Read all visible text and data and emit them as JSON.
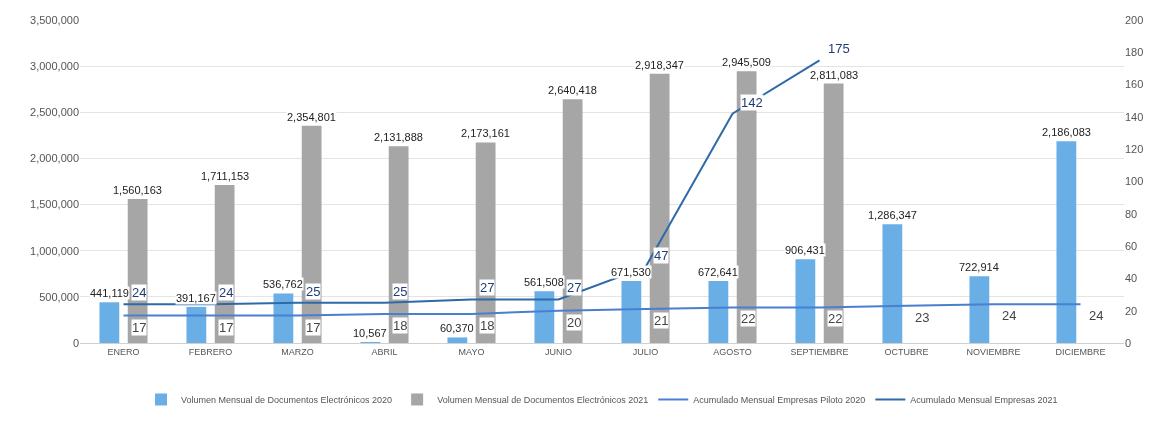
{
  "chart_data": {
    "type": "bar",
    "categories": [
      "ENERO",
      "FEBRERO",
      "MARZO",
      "ABRIL",
      "MAYO",
      "JUNIO",
      "JULIO",
      "AGOSTO",
      "SEPTIEMBRE",
      "OCTUBRE",
      "NOVIEMBRE",
      "DICIEMBRE"
    ],
    "series": [
      {
        "name": "Volumen Mensual de Documentos Electrónicos 2020",
        "type": "bar",
        "color": "#6aaee6",
        "values": [
          441119,
          391167,
          536762,
          10567,
          60370,
          561508,
          671530,
          672641,
          906431,
          1286347,
          722914,
          2186083
        ],
        "value_labels": [
          "441,119",
          "391,167",
          "536,762",
          "10,567",
          "60,370",
          "561,508",
          "671,530",
          "672,641",
          "906,431",
          "1,286,347",
          "722,914",
          "2,186,083"
        ]
      },
      {
        "name": "Volumen Mensual de Documentos Electrónicos 2021",
        "type": "bar",
        "color": "#a6a6a6",
        "values": [
          1560163,
          1711153,
          2354801,
          2131888,
          2173161,
          2640418,
          2918347,
          2945509,
          2811083,
          null,
          null,
          null
        ],
        "value_labels": [
          "1,560,163",
          "1,711,153",
          "2,354,801",
          "2,131,888",
          "2,173,161",
          "2,640,418",
          "2,918,347",
          "2,945,509",
          "2,811,083",
          null,
          null,
          null
        ]
      },
      {
        "name": "Acumulado Mensual Empresas Piloto 2020",
        "type": "line",
        "axis": "y2",
        "color": "#4a7fd0",
        "values": [
          17,
          17,
          17,
          18,
          18,
          20,
          21,
          22,
          22,
          23,
          24,
          24
        ],
        "value_labels": [
          "17",
          "17",
          "17",
          "18",
          "18",
          "20",
          "21",
          "22",
          "22",
          "23",
          "24",
          "24"
        ]
      },
      {
        "name": "Acumulado Mensual Empresas 2021",
        "type": "line",
        "axis": "y2",
        "color": "#2e6aa8",
        "values": [
          24,
          24,
          25,
          25,
          27,
          27,
          47,
          142,
          175,
          null,
          null,
          null
        ],
        "value_labels": [
          "24",
          "24",
          "25",
          "25",
          "27",
          "27",
          "47",
          "142",
          "175",
          null,
          null,
          null
        ]
      }
    ],
    "ylim": [
      0,
      3500000
    ],
    "yticks": [
      {
        "value": 0,
        "label": "0"
      },
      {
        "value": 500000,
        "label": "500,000"
      },
      {
        "value": 1000000,
        "label": "1,000,000"
      },
      {
        "value": 1500000,
        "label": "1,500,000"
      },
      {
        "value": 2000000,
        "label": "2,000,000"
      },
      {
        "value": 2500000,
        "label": "2,500,000"
      },
      {
        "value": 3000000,
        "label": "3,000,000"
      },
      {
        "value": 3500000,
        "label": "3,500,000"
      }
    ],
    "y2lim": [
      0,
      200
    ],
    "y2ticks": [
      0,
      20,
      40,
      60,
      80,
      100,
      120,
      140,
      160,
      180,
      200
    ],
    "grid": "y",
    "legend": "bottom",
    "marker": "none",
    "line_style": "solid"
  }
}
